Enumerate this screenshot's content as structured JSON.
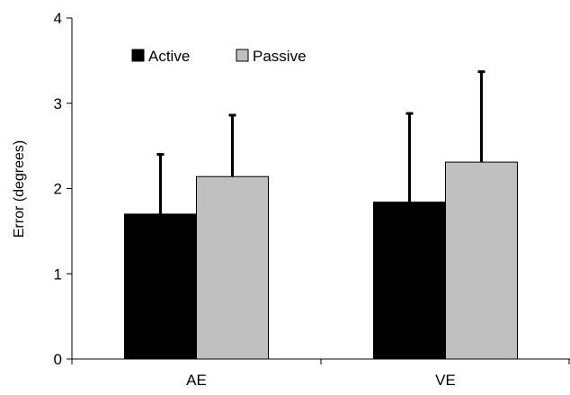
{
  "chart_data": {
    "type": "bar",
    "title": "",
    "xlabel": "",
    "ylabel": "Error (degrees)",
    "ylim": [
      0,
      4
    ],
    "yticks": [
      0,
      1,
      2,
      3,
      4
    ],
    "categories": [
      "AE",
      "VE"
    ],
    "series": [
      {
        "name": "Active",
        "color": "#000000",
        "values": [
          1.7,
          1.84
        ],
        "error_upper": [
          0.7,
          1.04
        ]
      },
      {
        "name": "Passive",
        "color": "#c0c0c0",
        "values": [
          2.14,
          2.31
        ],
        "error_upper": [
          0.72,
          1.06
        ]
      }
    ],
    "error_bars": "upper-only",
    "grid": false,
    "legend": {
      "placement": "top-left",
      "entries": [
        "Active",
        "Passive"
      ]
    }
  }
}
